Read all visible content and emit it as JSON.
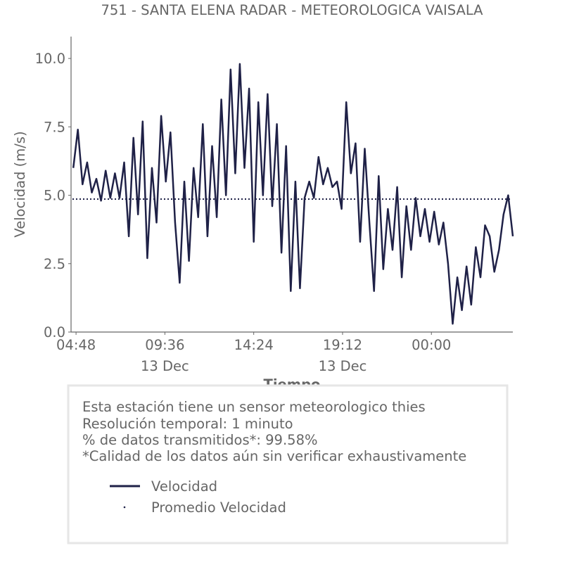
{
  "chart_data": {
    "type": "line",
    "title": "751 - SANTA ELENA RADAR - METEOROLOGICA VAISALA",
    "xlabel": "Tiempo",
    "ylabel": "Velocidad (m/s)",
    "ylim": [
      0,
      10.8
    ],
    "xlim_hours_from_0448": [
      -0.27,
      23.6
    ],
    "yticks": [
      "0.0",
      "2.5",
      "5.0",
      "7.5",
      "10.0"
    ],
    "ytick_values": [
      0,
      2.5,
      5,
      7.5,
      10
    ],
    "xticks": [
      "04:48",
      "09:36",
      "14:24",
      "19:12",
      "00:00"
    ],
    "xtick_hours_from_0448": [
      0,
      4.8,
      9.6,
      14.4,
      19.2
    ],
    "xtick_dates": [
      "13 Dec",
      "13 Dec"
    ],
    "xtick_date_hours_from_0448": [
      4.8,
      14.4
    ],
    "series_start_hours_from_0448": -0.15,
    "series_step_hours": 0.25,
    "series": [
      {
        "name": "Velocidad",
        "color": "#1f2147",
        "style": "solid",
        "values": [
          6.0,
          7.4,
          5.4,
          6.2,
          5.1,
          5.6,
          4.8,
          5.9,
          4.9,
          5.8,
          4.9,
          6.2,
          3.5,
          7.1,
          4.3,
          7.7,
          2.7,
          6.0,
          4.0,
          7.9,
          5.5,
          7.3,
          4.0,
          1.8,
          5.5,
          2.6,
          6.0,
          4.2,
          7.6,
          3.5,
          6.8,
          4.2,
          8.5,
          5.0,
          9.6,
          5.8,
          9.8,
          6.0,
          8.9,
          3.3,
          8.4,
          5.0,
          8.7,
          4.6,
          7.6,
          2.9,
          6.8,
          1.5,
          5.5,
          1.6,
          4.9,
          5.5,
          4.9,
          6.4,
          5.4,
          6.0,
          5.3,
          5.5,
          4.5,
          8.4,
          5.8,
          6.9,
          3.3,
          6.7,
          4.0,
          1.5,
          5.7,
          2.3,
          4.5,
          3.0,
          5.3,
          2.0,
          4.6,
          3.0,
          4.9,
          3.5,
          4.5,
          3.3,
          4.4,
          3.2,
          4.0,
          2.5,
          0.3,
          2.0,
          0.8,
          2.4,
          1.0,
          3.1,
          2.0,
          3.9,
          3.5,
          2.2,
          3.0,
          4.3,
          5.0,
          3.5
        ]
      },
      {
        "name": "Promedio Velocidad",
        "color": "#1f2147",
        "style": "dotted",
        "value": 4.86
      }
    ],
    "legend": [
      "Velocidad",
      "Promedio Velocidad"
    ],
    "legend_placement": "bottom",
    "grid": false
  },
  "info": {
    "lines": [
      "Esta estación tiene un sensor meteorologico thies",
      "Resolución temporal: 1 minuto",
      "% de datos transmitidos*: 99.58%",
      "*Calidad de los datos aún sin verificar exhaustivamente"
    ]
  }
}
